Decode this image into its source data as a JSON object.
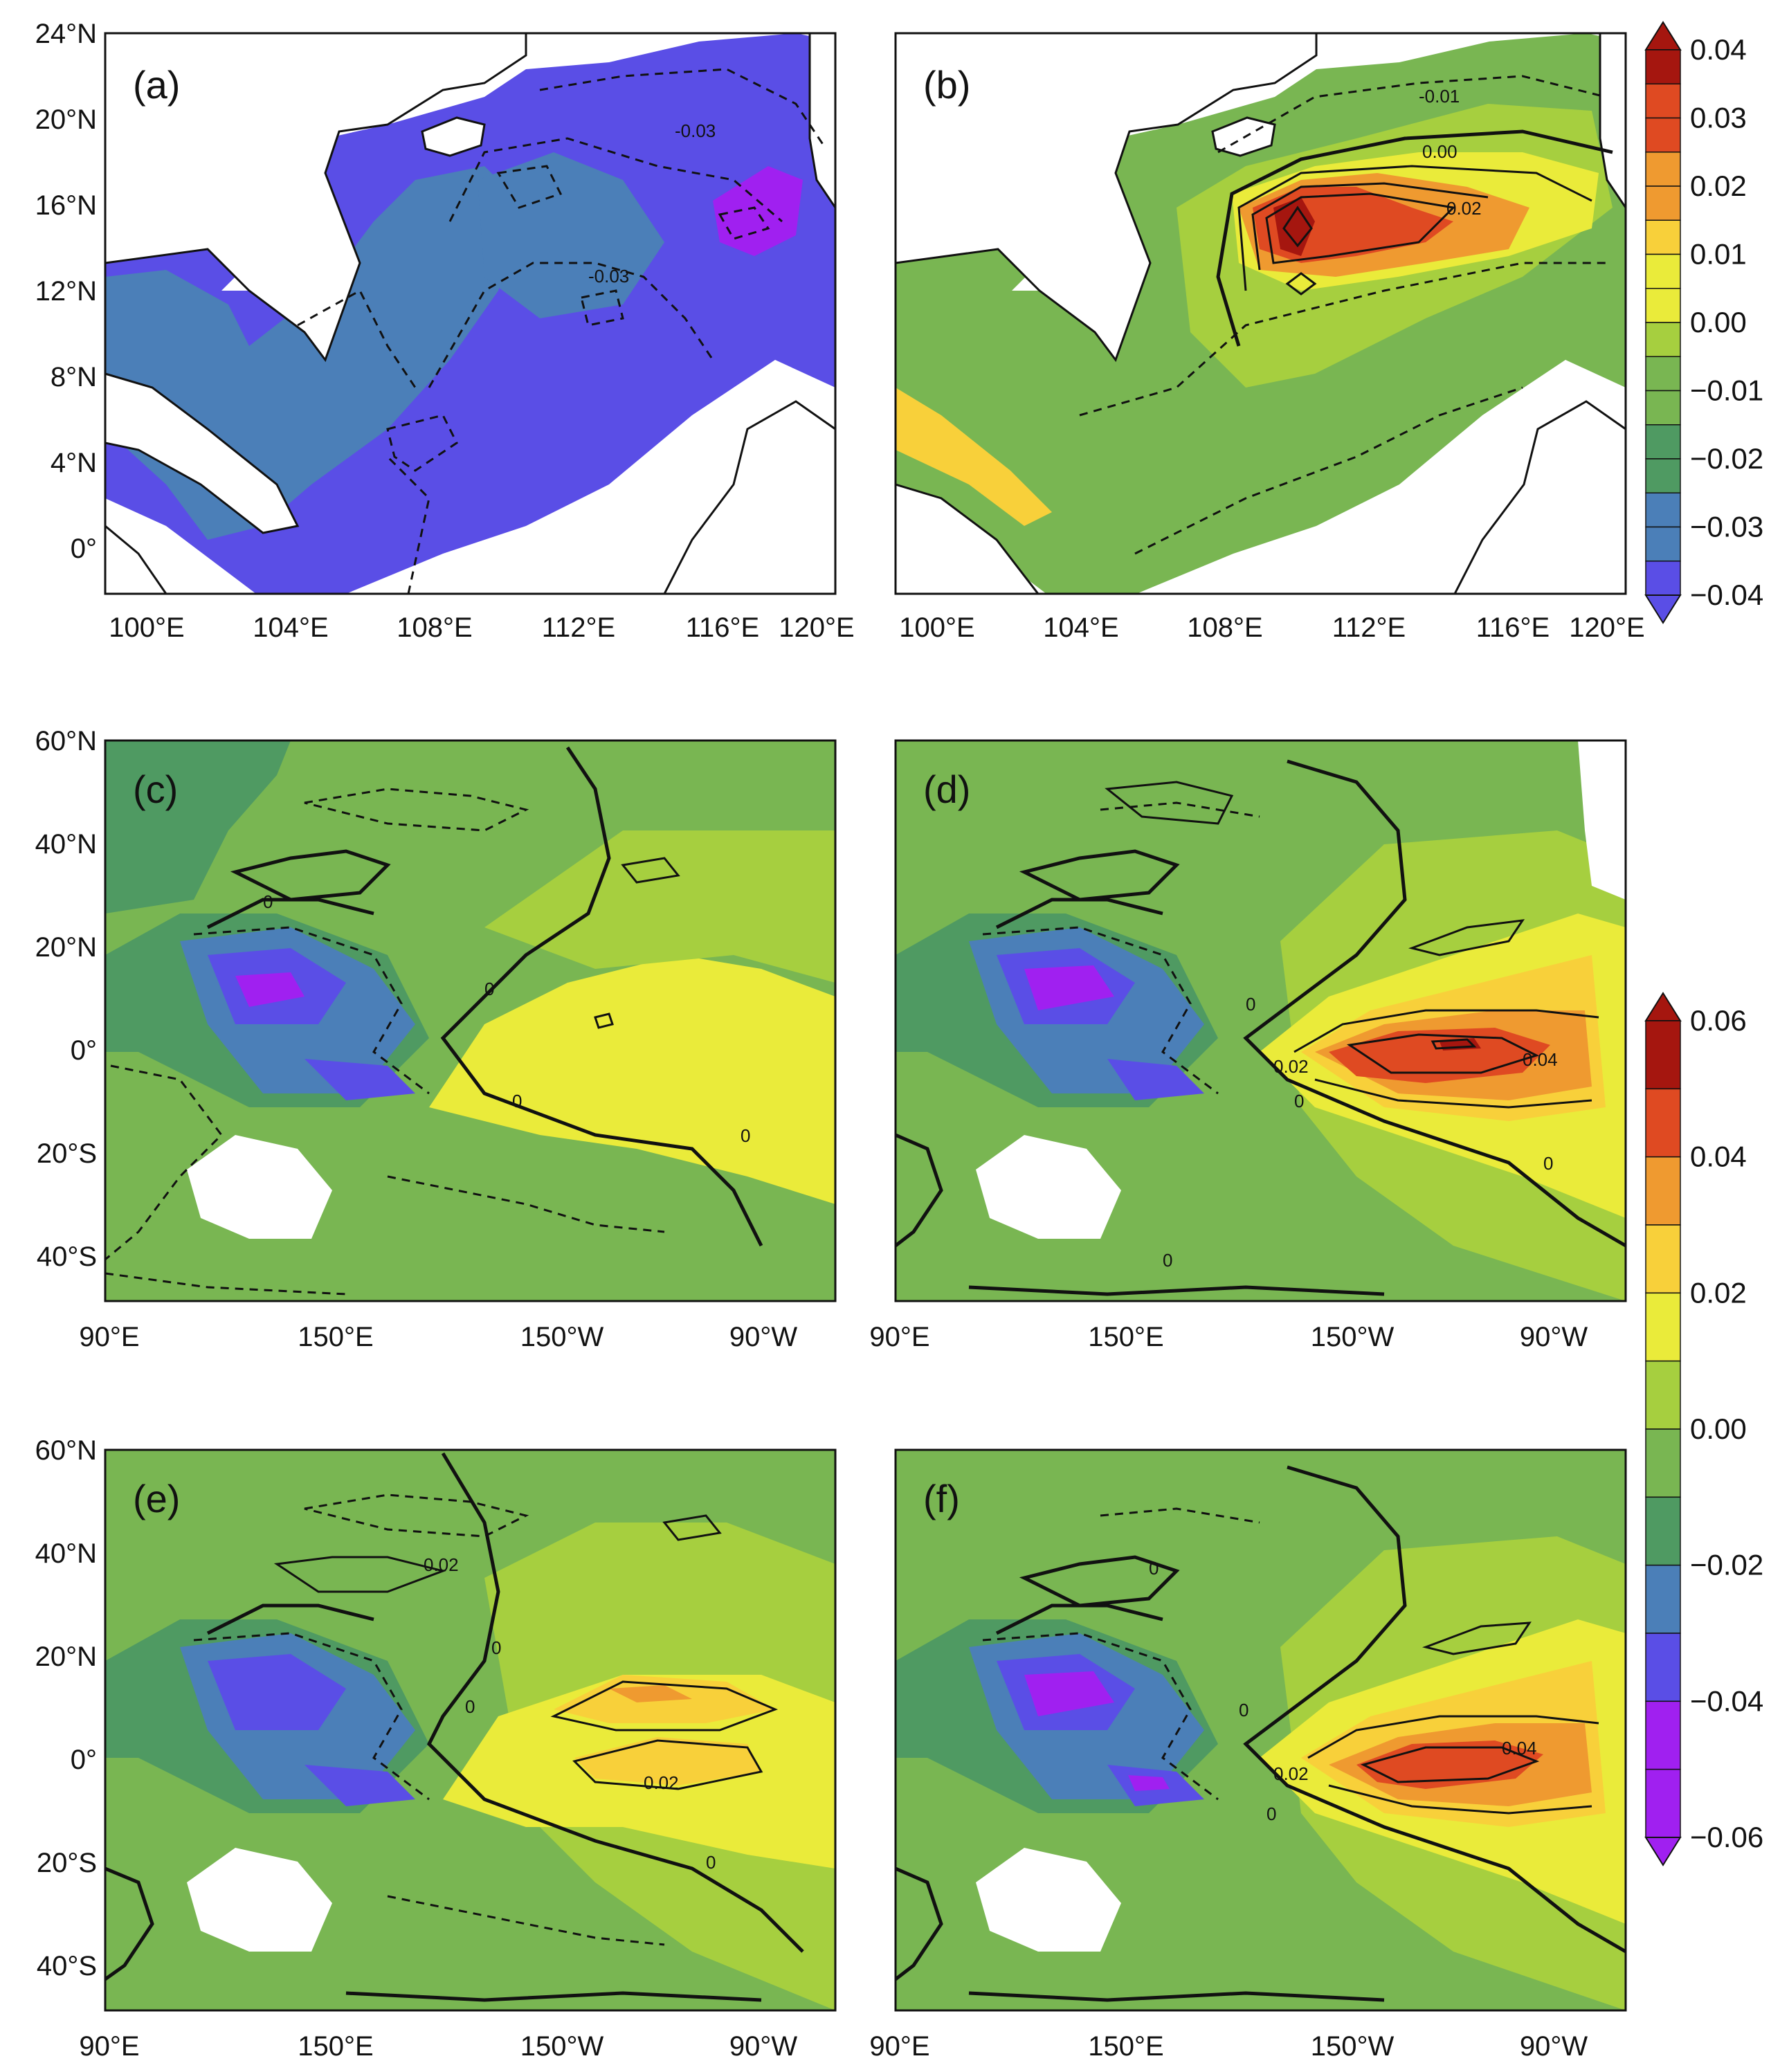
{
  "colors": {
    "purple": "#a020f0",
    "blue": "#5a4ee6",
    "steel": "#4b7fb8",
    "dkgreen": "#4f9a62",
    "green": "#79b652",
    "ltgreen": "#a6cf3f",
    "yellow": "#eaeb3a",
    "ltorange": "#f8d03a",
    "orange": "#ef9a30",
    "red": "#df4a22",
    "dkred": "#a5160f",
    "land": "#ffffff",
    "contour": "#111111"
  },
  "panels": [
    {
      "id": "a",
      "label": "(a)",
      "region": "south_china_sea",
      "contour_labels": [
        "-0.03",
        "-0.03"
      ]
    },
    {
      "id": "b",
      "label": "(b)",
      "region": "south_china_sea",
      "contour_labels": [
        "-0.01",
        "0.00",
        "0.02"
      ]
    },
    {
      "id": "c",
      "label": "(c)",
      "region": "pacific",
      "contour_labels": [
        "0",
        "0",
        "0",
        "0"
      ]
    },
    {
      "id": "d",
      "label": "(d)",
      "region": "pacific",
      "contour_labels": [
        "0",
        "0.02",
        "0.04",
        "0",
        "0",
        "0"
      ]
    },
    {
      "id": "e",
      "label": "(e)",
      "region": "pacific",
      "contour_labels": [
        "0.02",
        "0",
        "0",
        "0.02",
        "0"
      ]
    },
    {
      "id": "f",
      "label": "(f)",
      "region": "pacific",
      "contour_labels": [
        "0",
        "0.02",
        "0.04",
        "0",
        "0"
      ]
    }
  ],
  "axes": {
    "scs_lat": [
      "24°N",
      "20°N",
      "16°N",
      "12°N",
      "8°N",
      "4°N",
      "0°"
    ],
    "scs_lon": [
      "100°E",
      "104°E",
      "108°E",
      "112°E",
      "116°E",
      "120°E"
    ],
    "pac_lat": [
      "60°N",
      "40°N",
      "20°N",
      "0°",
      "20°S",
      "40°S"
    ],
    "pac_lon": [
      "90°E",
      "150°E",
      "150°W",
      "90°W"
    ]
  },
  "colorbars": {
    "top": {
      "labels": [
        "0.04",
        "0.03",
        "0.02",
        "0.01",
        "0.00",
        "−0.01",
        "−0.02",
        "−0.03",
        "−0.04"
      ],
      "min": -0.04,
      "max": 0.04
    },
    "bottom": {
      "labels": [
        "0.06",
        "0.04",
        "0.02",
        "0.00",
        "−0.02",
        "−0.04",
        "−0.06"
      ],
      "min": -0.06,
      "max": 0.06
    }
  }
}
